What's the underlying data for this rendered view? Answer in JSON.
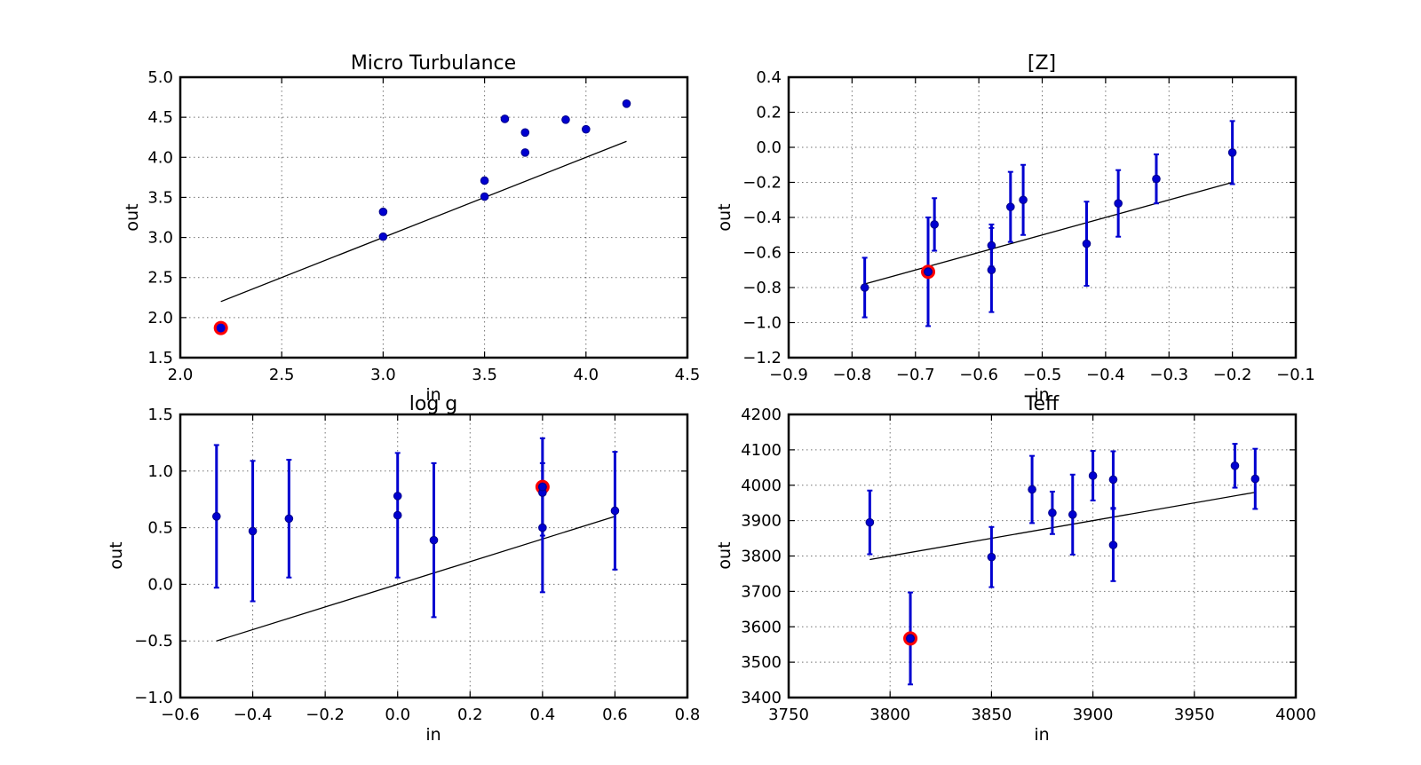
{
  "chart_data": [
    {
      "type": "scatter",
      "title": "Micro Turbulance",
      "xlabel": "in",
      "ylabel": "out",
      "xlim": [
        2.0,
        4.5
      ],
      "ylim": [
        1.5,
        5.0
      ],
      "xticks": [
        "2.0",
        "2.5",
        "3.0",
        "3.5",
        "4.0",
        "4.5"
      ],
      "yticks": [
        "1.5",
        "2.0",
        "2.5",
        "3.0",
        "3.5",
        "4.0",
        "4.5",
        "5.0"
      ],
      "grid": true,
      "line": [
        [
          2.2,
          2.2
        ],
        [
          4.2,
          4.2
        ]
      ],
      "points": [
        {
          "x": 3.0,
          "y": 3.32
        },
        {
          "x": 3.0,
          "y": 3.01
        },
        {
          "x": 3.5,
          "y": 3.71
        },
        {
          "x": 3.5,
          "y": 3.51
        },
        {
          "x": 3.6,
          "y": 4.48
        },
        {
          "x": 3.7,
          "y": 4.31
        },
        {
          "x": 3.7,
          "y": 4.06
        },
        {
          "x": 3.9,
          "y": 4.47
        },
        {
          "x": 4.0,
          "y": 4.35
        },
        {
          "x": 4.2,
          "y": 4.67
        }
      ],
      "highlight": {
        "x": 2.2,
        "y": 1.87
      }
    },
    {
      "type": "scatter",
      "title": "[Z]",
      "xlabel": "in",
      "ylabel": "out",
      "xlim": [
        -0.9,
        -0.1
      ],
      "ylim": [
        -1.2,
        0.4
      ],
      "xticks": [
        "−0.9",
        "−0.8",
        "−0.7",
        "−0.6",
        "−0.5",
        "−0.4",
        "−0.3",
        "−0.2",
        "−0.1"
      ],
      "yticks": [
        "−1.2",
        "−1.0",
        "−0.8",
        "−0.6",
        "−0.4",
        "−0.2",
        "0.0",
        "0.2",
        "0.4"
      ],
      "grid": true,
      "line": [
        [
          -0.78,
          -0.78
        ],
        [
          -0.2,
          -0.2
        ]
      ],
      "points": [
        {
          "x": -0.78,
          "y": -0.8,
          "err": 0.17
        },
        {
          "x": -0.68,
          "y": -0.71,
          "err": 0.31
        },
        {
          "x": -0.67,
          "y": -0.44,
          "err": 0.15
        },
        {
          "x": -0.58,
          "y": -0.56,
          "err": 0.12
        },
        {
          "x": -0.58,
          "y": -0.7,
          "err": 0.24
        },
        {
          "x": -0.55,
          "y": -0.34,
          "err": 0.2
        },
        {
          "x": -0.53,
          "y": -0.3,
          "err": 0.2
        },
        {
          "x": -0.43,
          "y": -0.55,
          "err": 0.24
        },
        {
          "x": -0.38,
          "y": -0.32,
          "err": 0.19
        },
        {
          "x": -0.32,
          "y": -0.18,
          "err": 0.14
        },
        {
          "x": -0.2,
          "y": -0.03,
          "err": 0.18
        }
      ],
      "highlight": {
        "x": -0.68,
        "y": -0.71
      }
    },
    {
      "type": "scatter",
      "title": "log g",
      "xlabel": "in",
      "ylabel": "out",
      "xlim": [
        -0.6,
        0.8
      ],
      "ylim": [
        -1.0,
        1.5
      ],
      "xticks": [
        "−0.6",
        "−0.4",
        "−0.2",
        "0.0",
        "0.2",
        "0.4",
        "0.6",
        "0.8"
      ],
      "yticks": [
        "−1.0",
        "−0.5",
        "0.0",
        "0.5",
        "1.0",
        "1.5"
      ],
      "grid": true,
      "line": [
        [
          -0.5,
          -0.5
        ],
        [
          0.6,
          0.6
        ]
      ],
      "points": [
        {
          "x": -0.5,
          "y": 0.6,
          "err": 0.63
        },
        {
          "x": -0.4,
          "y": 0.47,
          "err": 0.62
        },
        {
          "x": -0.3,
          "y": 0.58,
          "err": 0.52
        },
        {
          "x": 0.0,
          "y": 0.78,
          "err": 0.0
        },
        {
          "x": 0.0,
          "y": 0.61,
          "err": 0.55
        },
        {
          "x": 0.1,
          "y": 0.39,
          "err": 0.68
        },
        {
          "x": 0.4,
          "y": 0.81,
          "err": 0.0
        },
        {
          "x": 0.4,
          "y": 0.86,
          "err": 0.43
        },
        {
          "x": 0.4,
          "y": 0.5,
          "err": 0.57
        },
        {
          "x": 0.6,
          "y": 0.65,
          "err": 0.52
        }
      ],
      "highlight": {
        "x": 0.4,
        "y": 0.86
      }
    },
    {
      "type": "scatter",
      "title": "Teff",
      "xlabel": "in",
      "ylabel": "out",
      "xlim": [
        3750,
        4000
      ],
      "ylim": [
        3400,
        4200
      ],
      "xticks": [
        "3750",
        "3800",
        "3850",
        "3900",
        "3950",
        "4000"
      ],
      "yticks": [
        "3400",
        "3500",
        "3600",
        "3700",
        "3800",
        "3900",
        "4000",
        "4100",
        "4200"
      ],
      "grid": true,
      "line": [
        [
          3790,
          3790
        ],
        [
          3980,
          3980
        ]
      ],
      "points": [
        {
          "x": 3790,
          "y": 3895,
          "err": 90
        },
        {
          "x": 3810,
          "y": 3567,
          "err": 130
        },
        {
          "x": 3850,
          "y": 3797,
          "err": 85
        },
        {
          "x": 3870,
          "y": 3988,
          "err": 95
        },
        {
          "x": 3880,
          "y": 3922,
          "err": 60
        },
        {
          "x": 3890,
          "y": 3917,
          "err": 113
        },
        {
          "x": 3900,
          "y": 4027,
          "err": 70
        },
        {
          "x": 3910,
          "y": 4016,
          "err": 80
        },
        {
          "x": 3910,
          "y": 3831,
          "err": 102
        },
        {
          "x": 3970,
          "y": 4055,
          "err": 62
        },
        {
          "x": 3980,
          "y": 4018,
          "err": 85
        }
      ],
      "highlight": {
        "x": 3810,
        "y": 3567
      }
    }
  ]
}
